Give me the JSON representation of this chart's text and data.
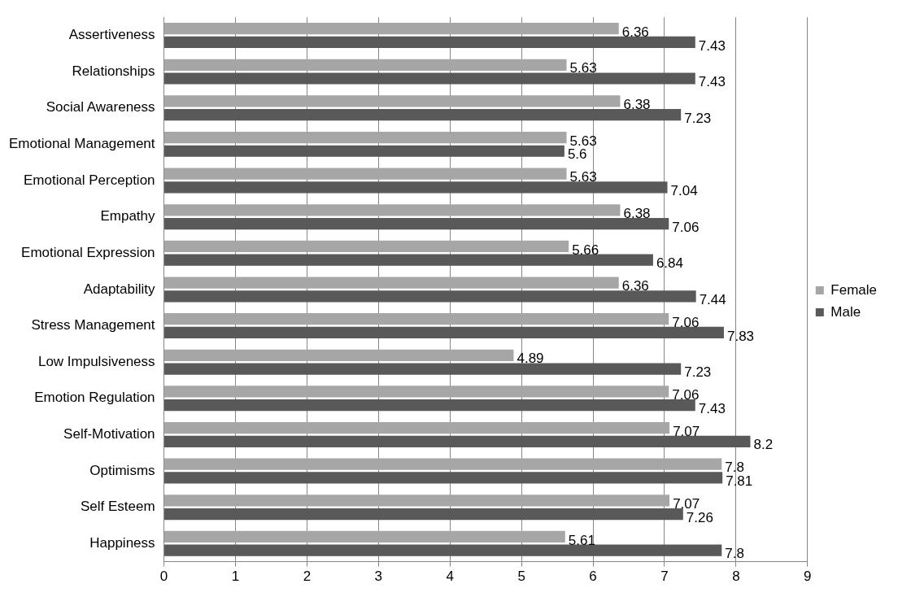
{
  "chart_data": {
    "type": "bar",
    "orientation": "horizontal",
    "categories": [
      "Assertiveness",
      "Relationships",
      "Social Awareness",
      "Emotional Management",
      "Emotional Perception",
      "Empathy",
      "Emotional Expression",
      "Adaptability",
      "Stress Management",
      "Low Impulsiveness",
      "Emotion Regulation",
      "Self-Motivation",
      "Optimisms",
      "Self Esteem",
      "Happiness"
    ],
    "series": [
      {
        "name": "Female",
        "color": "#a6a6a6",
        "values": [
          6.36,
          5.63,
          6.38,
          5.63,
          5.63,
          6.38,
          5.66,
          6.36,
          7.06,
          4.89,
          7.06,
          7.07,
          7.8,
          7.07,
          5.61
        ]
      },
      {
        "name": "Male",
        "color": "#595959",
        "values": [
          7.43,
          7.43,
          7.23,
          5.6,
          7.04,
          7.06,
          6.84,
          7.44,
          7.83,
          7.23,
          7.43,
          8.2,
          7.81,
          7.26,
          7.8
        ]
      }
    ],
    "xlim": [
      0,
      9
    ],
    "xticks": [
      0,
      1,
      2,
      3,
      4,
      5,
      6,
      7,
      8,
      9
    ],
    "grid": "x",
    "legend": "right",
    "data_labels": true
  }
}
